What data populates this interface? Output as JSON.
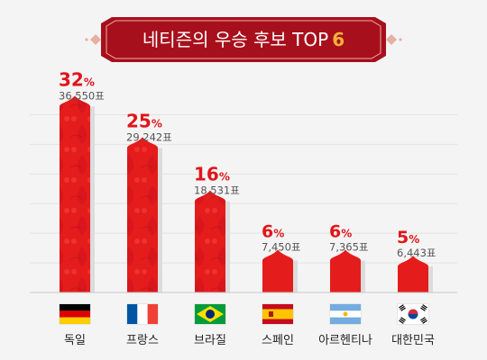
{
  "chart_data": {
    "type": "bar",
    "title": "네티즌의 우승 후보 TOP",
    "title_highlight": "6",
    "categories": [
      "독일",
      "프랑스",
      "브라질",
      "스페인",
      "아르헨티나",
      "대한민국"
    ],
    "series": [
      {
        "values": [
          32,
          25,
          16,
          6,
          6,
          5
        ],
        "percent_labels": [
          "32",
          "25",
          "16",
          "6",
          "6",
          "5"
        ],
        "vote_labels": [
          "36,550표",
          "29,242표",
          "18,531표",
          "7,450표",
          "7,365표",
          "6,443표"
        ]
      }
    ],
    "percent_suffix": "%",
    "ylim": [
      0,
      36
    ],
    "grid": true,
    "flags": [
      "germany-flag",
      "france-flag",
      "brazil-flag",
      "spain-flag",
      "argentina-flag",
      "korea-flag"
    ],
    "colors": {
      "bar": "#e51c1c",
      "bar_shadow": "#dcdcdc",
      "pct_text": "#e0161b",
      "vote_text": "#555555",
      "banner": "#b10f1d",
      "banner_accent": "#f2b23d"
    }
  }
}
